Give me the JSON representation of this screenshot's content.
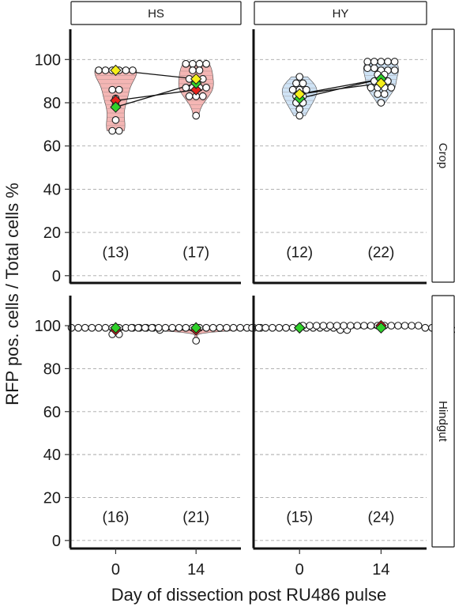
{
  "chart_data": {
    "type": "scatter",
    "subtype": "faceted violin + dot plot with mean markers",
    "xlabel": "Day of dissection post RU486 pulse",
    "ylabel": "RFP pos. cells / Total cells %",
    "x_ticks": [
      "0",
      "14"
    ],
    "y_ticks": [
      0,
      20,
      40,
      60,
      80,
      100
    ],
    "ylim": [
      -3,
      114
    ],
    "grid": "horizontal dashed",
    "col_facets": [
      "HS",
      "HY"
    ],
    "row_facets": [
      "Crop",
      "Hindgut"
    ],
    "violin_colors": {
      "HS": "#f4b6b4",
      "HY": "#cfe3f5"
    },
    "marker_colors": {
      "red": "#e8231c",
      "green": "#2fd12a",
      "yellow": "#f5ef1a"
    },
    "panels": [
      {
        "row": "Crop",
        "col": "HS",
        "groups": [
          {
            "day": "0",
            "count": "(13)",
            "values": [
              95,
              95,
              95,
              95,
              95,
              95,
              86,
              86,
              82,
              79,
              72,
              67,
              67
            ]
          },
          {
            "day": "14",
            "count": "(17)",
            "values": [
              98,
              98,
              98,
              98,
              95,
              95,
              91,
              91,
              91,
              87,
              87,
              87,
              87,
              83,
              83,
              83,
              74
            ]
          }
        ],
        "means": [
          {
            "color": "red",
            "values": [
              81,
              86
            ]
          },
          {
            "color": "green",
            "values": [
              78,
              89
            ]
          },
          {
            "color": "yellow",
            "values": [
              95,
              91
            ]
          }
        ]
      },
      {
        "row": "Crop",
        "col": "HY",
        "groups": [
          {
            "day": "0",
            "count": "(12)",
            "values": [
              92,
              89,
              89,
              86,
              86,
              86,
              83,
              83,
              80,
              80,
              77,
              74
            ]
          },
          {
            "day": "14",
            "count": "(22)",
            "values": [
              99,
              99,
              99,
              99,
              99,
              96,
              96,
              95,
              95,
              95,
              93,
              93,
              90,
              90,
              90,
              87,
              87,
              87,
              87,
              84,
              84,
              80
            ]
          }
        ],
        "means": [
          {
            "color": "red",
            "values": [
              84,
              91
            ]
          },
          {
            "color": "green",
            "values": [
              82,
              91
            ]
          },
          {
            "color": "yellow",
            "values": [
              84,
              89
            ]
          }
        ]
      },
      {
        "row": "Hindgut",
        "col": "HS",
        "groups": [
          {
            "day": "0",
            "count": "(16)",
            "values": [
              99,
              99,
              99,
              99,
              99,
              99,
              99,
              99,
              99,
              99,
              99,
              99,
              99,
              98,
              96,
              96
            ]
          },
          {
            "day": "14",
            "count": "(21)",
            "values": [
              99,
              99,
              99,
              99,
              99,
              99,
              99,
              99,
              99,
              99,
              99,
              99,
              99,
              99,
              99,
              99,
              99,
              99,
              99,
              99,
              93
            ]
          }
        ],
        "means": [
          {
            "color": "red",
            "values": [
              98,
              98
            ]
          },
          {
            "color": "green",
            "values": [
              99,
              99
            ]
          }
        ]
      },
      {
        "row": "Hindgut",
        "col": "HY",
        "groups": [
          {
            "day": "0",
            "count": "(15)",
            "values": [
              99,
              99,
              99,
              99,
              99,
              99,
              99,
              99,
              99,
              99,
              99,
              99,
              99,
              98,
              98
            ]
          },
          {
            "day": "14",
            "count": "(24)",
            "values": [
              100,
              100,
              100,
              100,
              100,
              100,
              100,
              100,
              100,
              100,
              100,
              100,
              100,
              100,
              100,
              100,
              100,
              100,
              99,
              99,
              98,
              98,
              98,
              98
            ]
          }
        ],
        "means": [
          {
            "color": "red",
            "values": [
              99,
              100
            ]
          },
          {
            "color": "green",
            "values": [
              99,
              99
            ]
          }
        ]
      }
    ]
  }
}
